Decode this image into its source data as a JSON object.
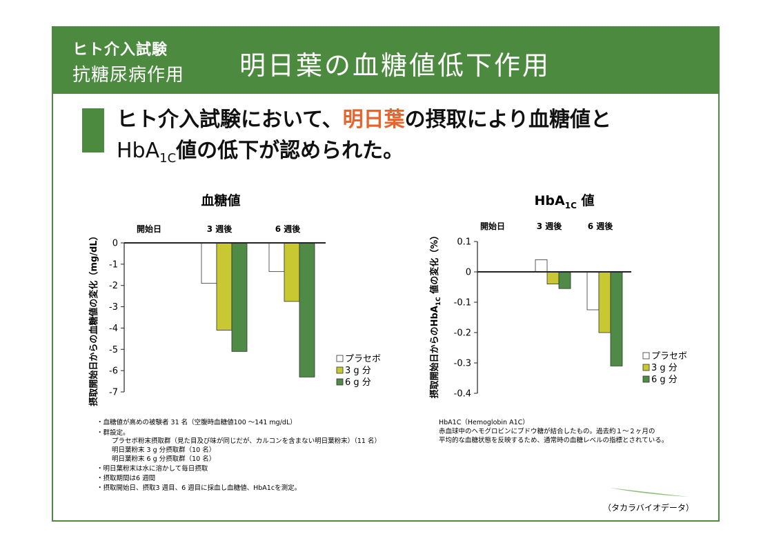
{
  "header": {
    "subtitle_line1": "ヒト介入試験",
    "subtitle_line2": "抗糖尿病作用",
    "title": "明日葉の血糖値低下作用"
  },
  "headline": {
    "line1_part1": "ヒト介入試験において、",
    "line1_accent": "明日葉",
    "line1_part2": "の摂取により血糖値と",
    "line2_prefix": "HbA",
    "line2_sub": "1C",
    "line2_suffix": "値の低下が認められた。"
  },
  "colors": {
    "brand_green": "#4c8a3f",
    "accent_orange": "#e8642c",
    "placebo": "#ffffff",
    "dose_3g": "#c8c832",
    "dose_6g": "#4f8a47"
  },
  "chart_data": [
    {
      "type": "bar",
      "title": "血糖値",
      "ylabel": "摂取開始日からの血糖値の変化（mg/dL）",
      "phase_labels": [
        "開始日",
        "3 週後",
        "6 週後"
      ],
      "categories": [
        "3 週後",
        "6 週後"
      ],
      "series": [
        {
          "name": "プラセボ",
          "values": [
            -1.9,
            -1.35
          ]
        },
        {
          "name": "3 g 分",
          "values": [
            -4.1,
            -2.75
          ]
        },
        {
          "name": "6 g 分",
          "values": [
            -5.1,
            -6.3
          ]
        }
      ],
      "ylim": [
        -7,
        0
      ],
      "yticks": [
        "0",
        "-1",
        "-2",
        "-3",
        "-4",
        "-5",
        "-6",
        "-7"
      ],
      "legend_position": "right",
      "grid": false
    },
    {
      "type": "bar",
      "title_prefix": "HbA",
      "title_sub": "1C",
      "title_suffix": " 値",
      "ylabel_prefix": "摂取開始日からのHbA",
      "ylabel_sub": "1C",
      "ylabel_suffix": " 値の変化（%）",
      "phase_labels": [
        "開始日",
        "3 週後",
        "6 週後"
      ],
      "categories": [
        "3 週後",
        "6 週後"
      ],
      "series": [
        {
          "name": "プラセボ",
          "values": [
            0.04,
            -0.125
          ]
        },
        {
          "name": "3 g 分",
          "values": [
            -0.04,
            -0.2
          ]
        },
        {
          "name": "6 g 分",
          "values": [
            -0.055,
            -0.31
          ]
        }
      ],
      "ylim": [
        -0.4,
        0.1
      ],
      "yticks": [
        "0.1",
        "0",
        "-0.1",
        "-0.2",
        "-0.3",
        "-0.4"
      ],
      "legend_position": "right",
      "grid": false
    }
  ],
  "notes_left": [
    "・血糖値が高めの被験者 31 名（空腹時血糖値100 ～141 mg/dL）",
    "・群設定。",
    "プラセボ粉末摂取群（見た目及び味が同じだが、カルコンを含まない明日葉粉末）（11 名）",
    "明日葉粉末 3 g 分摂取群（10 名）",
    "明日葉粉末 6 g 分摂取群（10 名）",
    "・明日葉粉末は水に溶かして毎日摂取",
    "・摂取期間は6 週間",
    "・摂取開始日、摂取3 週目、6 週目に採血し血糖値、HbA1cを測定。"
  ],
  "notes_right": [
    "HbA1C（Hemoglobin A1C）",
    "赤血球中のヘモグロビンにブドウ糖が結合したもの。過去約１～２ヶ月の",
    "平均的な血糖状態を反映するため、通常時の血糖レベルの指標とされている。"
  ],
  "source": "（タカラバイオデータ）"
}
